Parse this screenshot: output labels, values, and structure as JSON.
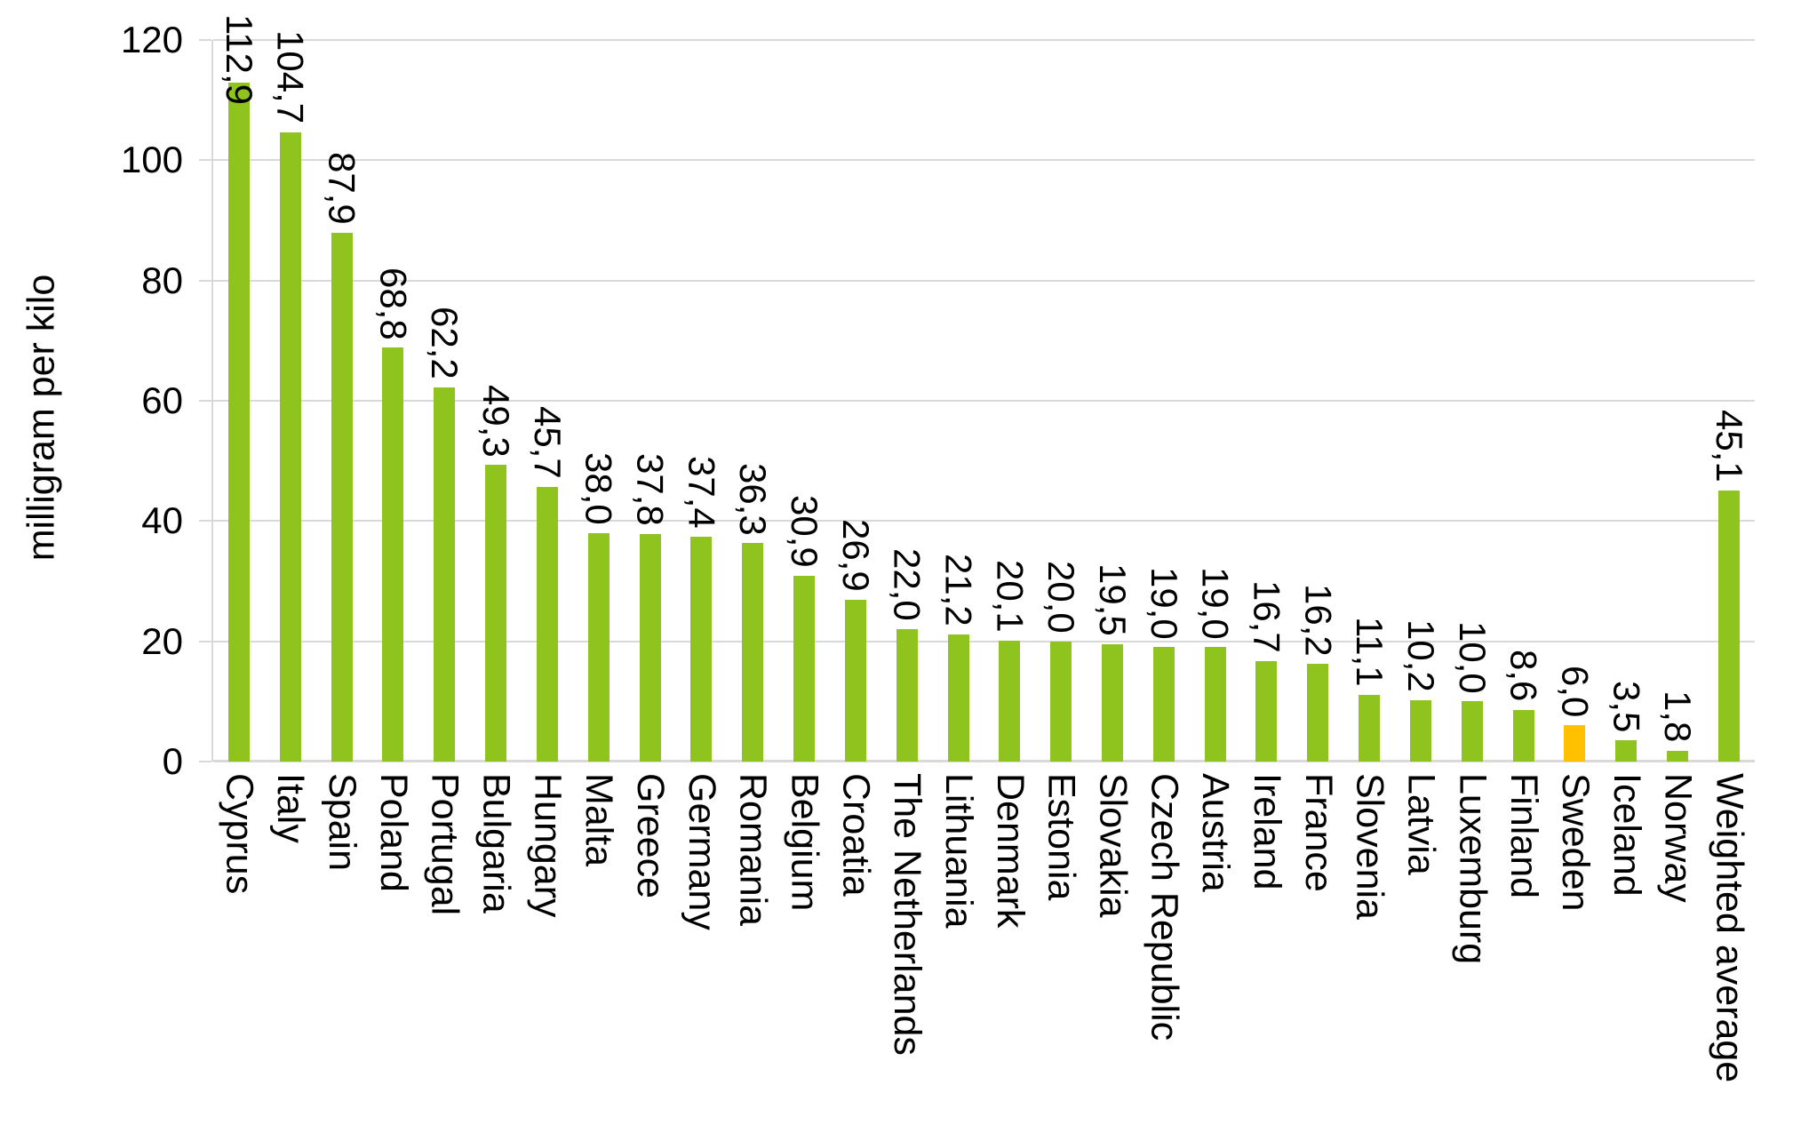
{
  "chart_data": {
    "type": "bar",
    "title": "",
    "ylabel": "milligram per kilo",
    "xlabel": "",
    "ylim": [
      0,
      120
    ],
    "yticks": [
      0,
      20,
      40,
      60,
      80,
      100,
      120
    ],
    "grid": true,
    "legend_position": "none",
    "decimal_separator": ",",
    "colors": {
      "bar_default": "#8fc31e",
      "bar_highlight": "#ffc000",
      "gridline": "#d9d9d9",
      "axis": "#d9d9d9",
      "text": "#000000"
    },
    "highlighted_category": "Sweden",
    "bars": [
      {
        "category": "Cyprus",
        "value": 112.9,
        "label": "112,9",
        "highlight": false
      },
      {
        "category": "Italy",
        "value": 104.7,
        "label": "104,7",
        "highlight": false
      },
      {
        "category": "Spain",
        "value": 87.9,
        "label": "87,9",
        "highlight": false
      },
      {
        "category": "Poland",
        "value": 68.8,
        "label": "68,8",
        "highlight": false
      },
      {
        "category": "Portugal",
        "value": 62.2,
        "label": "62,2",
        "highlight": false
      },
      {
        "category": "Bulgaria",
        "value": 49.3,
        "label": "49,3",
        "highlight": false
      },
      {
        "category": "Hungary",
        "value": 45.7,
        "label": "45,7",
        "highlight": false
      },
      {
        "category": "Malta",
        "value": 38.0,
        "label": "38,0",
        "highlight": false
      },
      {
        "category": "Greece",
        "value": 37.8,
        "label": "37,8",
        "highlight": false
      },
      {
        "category": "Germany",
        "value": 37.4,
        "label": "37,4",
        "highlight": false
      },
      {
        "category": "Romania",
        "value": 36.3,
        "label": "36,3",
        "highlight": false
      },
      {
        "category": "Belgium",
        "value": 30.9,
        "label": "30,9",
        "highlight": false
      },
      {
        "category": "Croatia",
        "value": 26.9,
        "label": "26,9",
        "highlight": false
      },
      {
        "category": "The Netherlands",
        "value": 22.0,
        "label": "22,0",
        "highlight": false
      },
      {
        "category": "Lithuania",
        "value": 21.2,
        "label": "21,2",
        "highlight": false
      },
      {
        "category": "Denmark",
        "value": 20.1,
        "label": "20,1",
        "highlight": false
      },
      {
        "category": "Estonia",
        "value": 20.0,
        "label": "20,0",
        "highlight": false
      },
      {
        "category": "Slovakia",
        "value": 19.5,
        "label": "19,5",
        "highlight": false
      },
      {
        "category": "Czech Republic",
        "value": 19.0,
        "label": "19,0",
        "highlight": false
      },
      {
        "category": "Austria",
        "value": 19.0,
        "label": "19,0",
        "highlight": false
      },
      {
        "category": "Ireland",
        "value": 16.7,
        "label": "16,7",
        "highlight": false
      },
      {
        "category": "France",
        "value": 16.2,
        "label": "16,2",
        "highlight": false
      },
      {
        "category": "Slovenia",
        "value": 11.1,
        "label": "11,1",
        "highlight": false
      },
      {
        "category": "Latvia",
        "value": 10.2,
        "label": "10,2",
        "highlight": false
      },
      {
        "category": "Luxemburg",
        "value": 10.0,
        "label": "10,0",
        "highlight": false
      },
      {
        "category": "Finland",
        "value": 8.6,
        "label": "8,6",
        "highlight": false
      },
      {
        "category": "Sweden",
        "value": 6.0,
        "label": "6,0",
        "highlight": true
      },
      {
        "category": "Iceland",
        "value": 3.5,
        "label": "3,5",
        "highlight": false
      },
      {
        "category": "Norway",
        "value": 1.8,
        "label": "1,8",
        "highlight": false
      },
      {
        "category": "Weighted average",
        "value": 45.1,
        "label": "45,1",
        "highlight": false
      }
    ]
  }
}
